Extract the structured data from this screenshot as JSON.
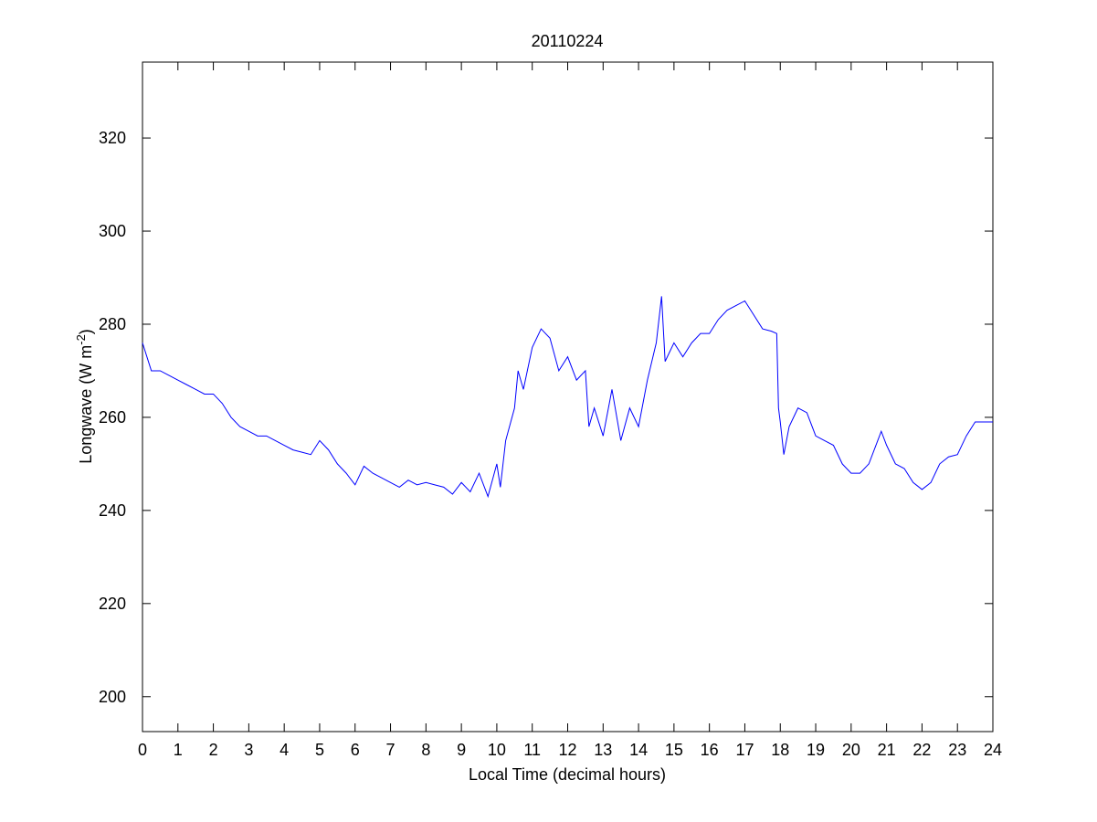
{
  "chart_data": {
    "type": "line",
    "title": "20110224",
    "xlabel": "Local Time (decimal hours)",
    "ylabel": {
      "text": "Longwave (W m",
      "superscript": "-2",
      "suffix": ")"
    },
    "x": [
      0,
      0.25,
      0.5,
      0.75,
      1,
      1.25,
      1.5,
      1.75,
      2,
      2.25,
      2.5,
      2.75,
      3,
      3.25,
      3.5,
      3.75,
      4,
      4.25,
      4.5,
      4.75,
      5,
      5.25,
      5.5,
      5.75,
      6,
      6.25,
      6.5,
      6.75,
      7,
      7.25,
      7.5,
      7.75,
      8,
      8.25,
      8.5,
      8.75,
      9,
      9.25,
      9.5,
      9.75,
      10,
      10.1,
      10.25,
      10.5,
      10.6,
      10.75,
      11,
      11.25,
      11.5,
      11.75,
      12,
      12.25,
      12.5,
      12.6,
      12.75,
      13,
      13.25,
      13.5,
      13.75,
      14,
      14.25,
      14.5,
      14.65,
      14.75,
      15,
      15.25,
      15.5,
      15.75,
      16,
      16.25,
      16.5,
      16.75,
      17,
      17.25,
      17.5,
      17.75,
      17.9,
      17.95,
      18,
      18.1,
      18.25,
      18.5,
      18.75,
      19,
      19.25,
      19.5,
      19.75,
      20,
      20.25,
      20.5,
      20.75,
      20.85,
      21,
      21.25,
      21.5,
      21.75,
      22,
      22.25,
      22.5,
      22.75,
      23,
      23.25,
      23.5,
      23.75,
      24
    ],
    "series": [
      {
        "name": "Longwave",
        "color": "#0000ff",
        "values": [
          276,
          270,
          270,
          269,
          268,
          267,
          266,
          265,
          265,
          263,
          260,
          258,
          257,
          256,
          256,
          255,
          254,
          253,
          252.5,
          252,
          255,
          253,
          250,
          248,
          245.5,
          249.5,
          248,
          247,
          246,
          245,
          246.5,
          245.5,
          246,
          245.5,
          245,
          243.5,
          246,
          244,
          248,
          243,
          250,
          245,
          255,
          262,
          270,
          266,
          275,
          279,
          277,
          270,
          273,
          268,
          270,
          258,
          262,
          256,
          266,
          255,
          262,
          258,
          268,
          276,
          286,
          272,
          276,
          273,
          276,
          278,
          278,
          281,
          283,
          284,
          285,
          282,
          279,
          278.5,
          278,
          262,
          259,
          252,
          258,
          262,
          261,
          256,
          255,
          254,
          250,
          248,
          248,
          250,
          255,
          257,
          254,
          250,
          249,
          246,
          244.5,
          246,
          250,
          251.5,
          252,
          256,
          259,
          259,
          259
        ]
      }
    ],
    "xlim": [
      0,
      24
    ],
    "xticks": [
      0,
      1,
      2,
      3,
      4,
      5,
      6,
      7,
      8,
      9,
      10,
      11,
      12,
      13,
      14,
      15,
      16,
      17,
      18,
      19,
      20,
      21,
      22,
      23,
      24
    ],
    "ylim": [
      192.5,
      336.3
    ],
    "yticks": [
      200,
      220,
      240,
      260,
      280,
      300,
      320
    ],
    "grid": false
  }
}
